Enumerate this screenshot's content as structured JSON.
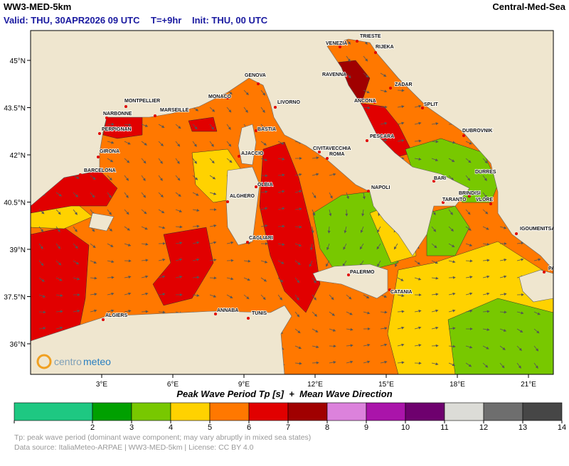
{
  "header": {
    "model": "WW3-MED-5km",
    "region": "Central-Med-Sea",
    "valid": "Valid: THU, 30APR2026 09 UTC",
    "lead": "T=+9hr",
    "init": "Init: THU, 00 UTC"
  },
  "map": {
    "lon_ticks": [
      {
        "value": 3,
        "label": "3°E"
      },
      {
        "value": 6,
        "label": "6°E"
      },
      {
        "value": 9,
        "label": "9°E"
      },
      {
        "value": 12,
        "label": "12°E"
      },
      {
        "value": 15,
        "label": "15°E"
      },
      {
        "value": 18,
        "label": "18°E"
      },
      {
        "value": 21,
        "label": "21°E"
      }
    ],
    "lat_ticks": [
      {
        "value": 45,
        "label": "45°N"
      },
      {
        "value": 43.5,
        "label": "43.5°N"
      },
      {
        "value": 42,
        "label": "42°N"
      },
      {
        "value": 40.5,
        "label": "40.5°N"
      },
      {
        "value": 39,
        "label": "39°N"
      },
      {
        "value": 37.5,
        "label": "37.5°N"
      },
      {
        "value": 36,
        "label": "36°N"
      }
    ],
    "cities": [
      "VENEZIA",
      "TRIESTE",
      "RIJEKA",
      "RAVENNA",
      "ZADAR",
      "ANCONA",
      "SPLIT",
      "GENOVA",
      "MONTPELLIER",
      "MONACO",
      "LIVORNO",
      "NARBONNE",
      "MARSEILLE",
      "PERPIGNAN",
      "BASTIA",
      "DUBROVNIK",
      "GIRONA",
      "CIVITAVECCHIA",
      "ROMA",
      "PESCARA",
      "AJACCIO",
      "BARCELONA",
      "BARI",
      "DURRES",
      "OLBIA",
      "NAPOLI",
      "ALGHERO",
      "TARANTO",
      "BRINDISI",
      "VLORE",
      "IGOUMENITSA",
      "CAGLIARI",
      "PALERMO",
      "PATRAS",
      "CATANIA",
      "ANNABA",
      "TUNIS",
      "ALGIERS"
    ]
  },
  "logo": {
    "part1": "centro",
    "part2": "meteo"
  },
  "colorbar": {
    "title": "Peak Wave Period Tp [s]  +  Mean Wave Direction",
    "ticks": [
      2,
      3,
      4,
      5,
      6,
      7,
      8,
      9,
      10,
      11,
      12,
      13,
      14
    ],
    "colors": [
      "#1ec882",
      "#00a000",
      "#78c800",
      "#ffd200",
      "#ff7800",
      "#e10000",
      "#a00000",
      "#dc82dc",
      "#aa14aa",
      "#6e006e",
      "#dcdcd7",
      "#6e6e6e",
      "#464646"
    ]
  },
  "footer": [
    "Tp: peak wave period (dominant wave component; may vary abruptly in mixed sea states)",
    "Data source: ItaliaMeteo-ARPAE | WW3-MED-5km | License: CC BY 4.0"
  ]
}
